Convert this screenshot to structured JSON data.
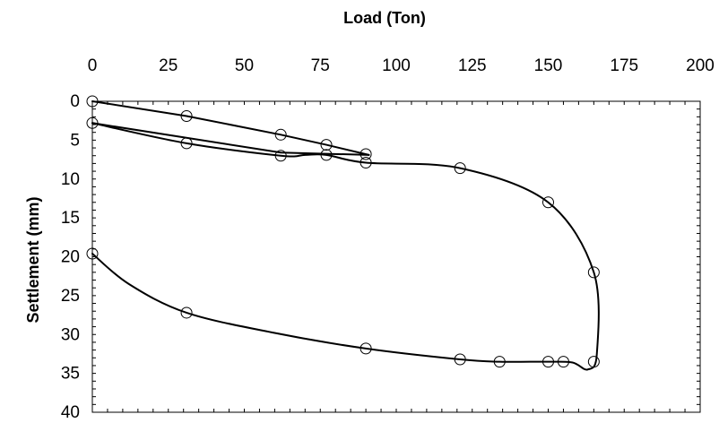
{
  "chart_data": {
    "type": "scatter",
    "title": "",
    "xlabel": "Load (Ton)",
    "ylabel": "Settlement (mm)",
    "xlim": [
      0,
      200
    ],
    "ylim": [
      0,
      40
    ],
    "y_inverted": true,
    "x_axis_position": "top",
    "grid": false,
    "legend": "none",
    "x_ticks": [
      "0",
      "25",
      "50",
      "75",
      "100",
      "125",
      "150",
      "175",
      "200"
    ],
    "y_ticks": [
      "0",
      "5",
      "10",
      "15",
      "20",
      "25",
      "30",
      "35",
      "40"
    ],
    "series": [
      {
        "marker": "open-circle",
        "color": "#000000",
        "points": [
          {
            "x": 0,
            "y": 0
          },
          {
            "x": 31,
            "y": 1.9
          },
          {
            "x": 62,
            "y": 4.3
          },
          {
            "x": 77,
            "y": 5.6
          },
          {
            "x": 90,
            "y": 6.8
          },
          {
            "x": 0,
            "y": 2.8
          },
          {
            "x": 31,
            "y": 5.4
          },
          {
            "x": 62,
            "y": 7.0
          },
          {
            "x": 77,
            "y": 6.9
          },
          {
            "x": 90,
            "y": 7.9
          },
          {
            "x": 121,
            "y": 8.6
          },
          {
            "x": 150,
            "y": 13.0
          },
          {
            "x": 165,
            "y": 22.0
          },
          {
            "x": 165,
            "y": 33.5
          },
          {
            "x": 155,
            "y": 33.5
          },
          {
            "x": 150,
            "y": 33.5
          },
          {
            "x": 134,
            "y": 33.5
          },
          {
            "x": 121,
            "y": 33.2
          },
          {
            "x": 90,
            "y": 31.8
          },
          {
            "x": 31,
            "y": 27.2
          },
          {
            "x": 0,
            "y": 19.6
          }
        ]
      }
    ],
    "curves": [
      {
        "points": [
          [
            0,
            0
          ],
          [
            31,
            1.9
          ],
          [
            62,
            4.3
          ],
          [
            77,
            5.6
          ],
          [
            91,
            6.9
          ]
        ],
        "style": "straight"
      },
      {
        "points": [
          [
            91,
            6.9
          ],
          [
            62,
            6.6
          ],
          [
            0,
            2.8
          ]
        ],
        "style": "straight"
      },
      {
        "points": [
          [
            0,
            2.8
          ],
          [
            31,
            5.4
          ],
          [
            62,
            7.0
          ],
          [
            70,
            6.9
          ],
          [
            77,
            6.9
          ],
          [
            90,
            7.9
          ],
          [
            121,
            8.6
          ],
          [
            150,
            13.0
          ],
          [
            165,
            22.0
          ],
          [
            166,
            32.5
          ],
          [
            163,
            34.5
          ],
          [
            158,
            33.6
          ],
          [
            150,
            33.5
          ],
          [
            134,
            33.5
          ],
          [
            121,
            33.2
          ],
          [
            90,
            31.8
          ],
          [
            60,
            29.8
          ],
          [
            31,
            27.2
          ],
          [
            12,
            23.5
          ],
          [
            0,
            19.6
          ]
        ],
        "style": "smooth"
      }
    ]
  }
}
